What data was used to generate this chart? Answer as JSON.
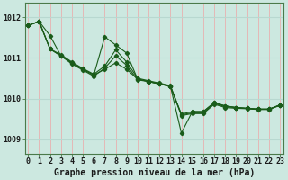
{
  "background_color": "#cce8e0",
  "grid_color_vertical": "#e8b0b0",
  "grid_color_horizontal": "#b8d8d0",
  "line_color": "#1a5c1a",
  "xlabel": "Graphe pression niveau de la mer (hPa)",
  "xlabel_fontsize": 7,
  "tick_fontsize": 6,
  "ylim": [
    1008.65,
    1012.35
  ],
  "yticks": [
    1009,
    1010,
    1011,
    1012
  ],
  "xlim": [
    -0.3,
    23.3
  ],
  "xticks": [
    0,
    1,
    2,
    3,
    4,
    5,
    6,
    7,
    8,
    9,
    10,
    11,
    12,
    13,
    14,
    15,
    16,
    17,
    18,
    19,
    20,
    21,
    22,
    23
  ],
  "series": [
    [
      1011.8,
      1011.9,
      1011.55,
      1011.05,
      1010.88,
      1010.72,
      1010.58,
      1010.72,
      1010.88,
      1010.72,
      1010.48,
      1010.42,
      1010.36,
      1010.3,
      1009.62,
      1009.68,
      1009.68,
      1009.9,
      1009.82,
      1009.78,
      1009.76,
      1009.74,
      1009.74,
      1009.84
    ],
    [
      1011.8,
      1011.9,
      1011.22,
      1011.05,
      1010.88,
      1010.72,
      1010.58,
      1011.52,
      1011.32,
      1011.12,
      1010.48,
      1010.42,
      1010.36,
      1010.3,
      1009.15,
      1009.68,
      1009.68,
      1009.9,
      1009.82,
      1009.78,
      1009.76,
      1009.74,
      1009.74,
      1009.84
    ],
    [
      1011.8,
      1011.9,
      1011.22,
      1011.08,
      1010.9,
      1010.74,
      1010.6,
      1010.8,
      1011.2,
      1010.9,
      1010.5,
      1010.44,
      1010.38,
      1010.32,
      1009.6,
      1009.65,
      1009.65,
      1009.88,
      1009.8,
      1009.78,
      1009.76,
      1009.74,
      1009.74,
      1009.84
    ],
    [
      1011.8,
      1011.9,
      1011.22,
      1011.05,
      1010.85,
      1010.7,
      1010.55,
      1010.75,
      1011.05,
      1010.82,
      1010.46,
      1010.42,
      1010.36,
      1010.3,
      1009.58,
      1009.63,
      1009.63,
      1009.86,
      1009.78,
      1009.76,
      1009.75,
      1009.73,
      1009.73,
      1009.83
    ]
  ]
}
